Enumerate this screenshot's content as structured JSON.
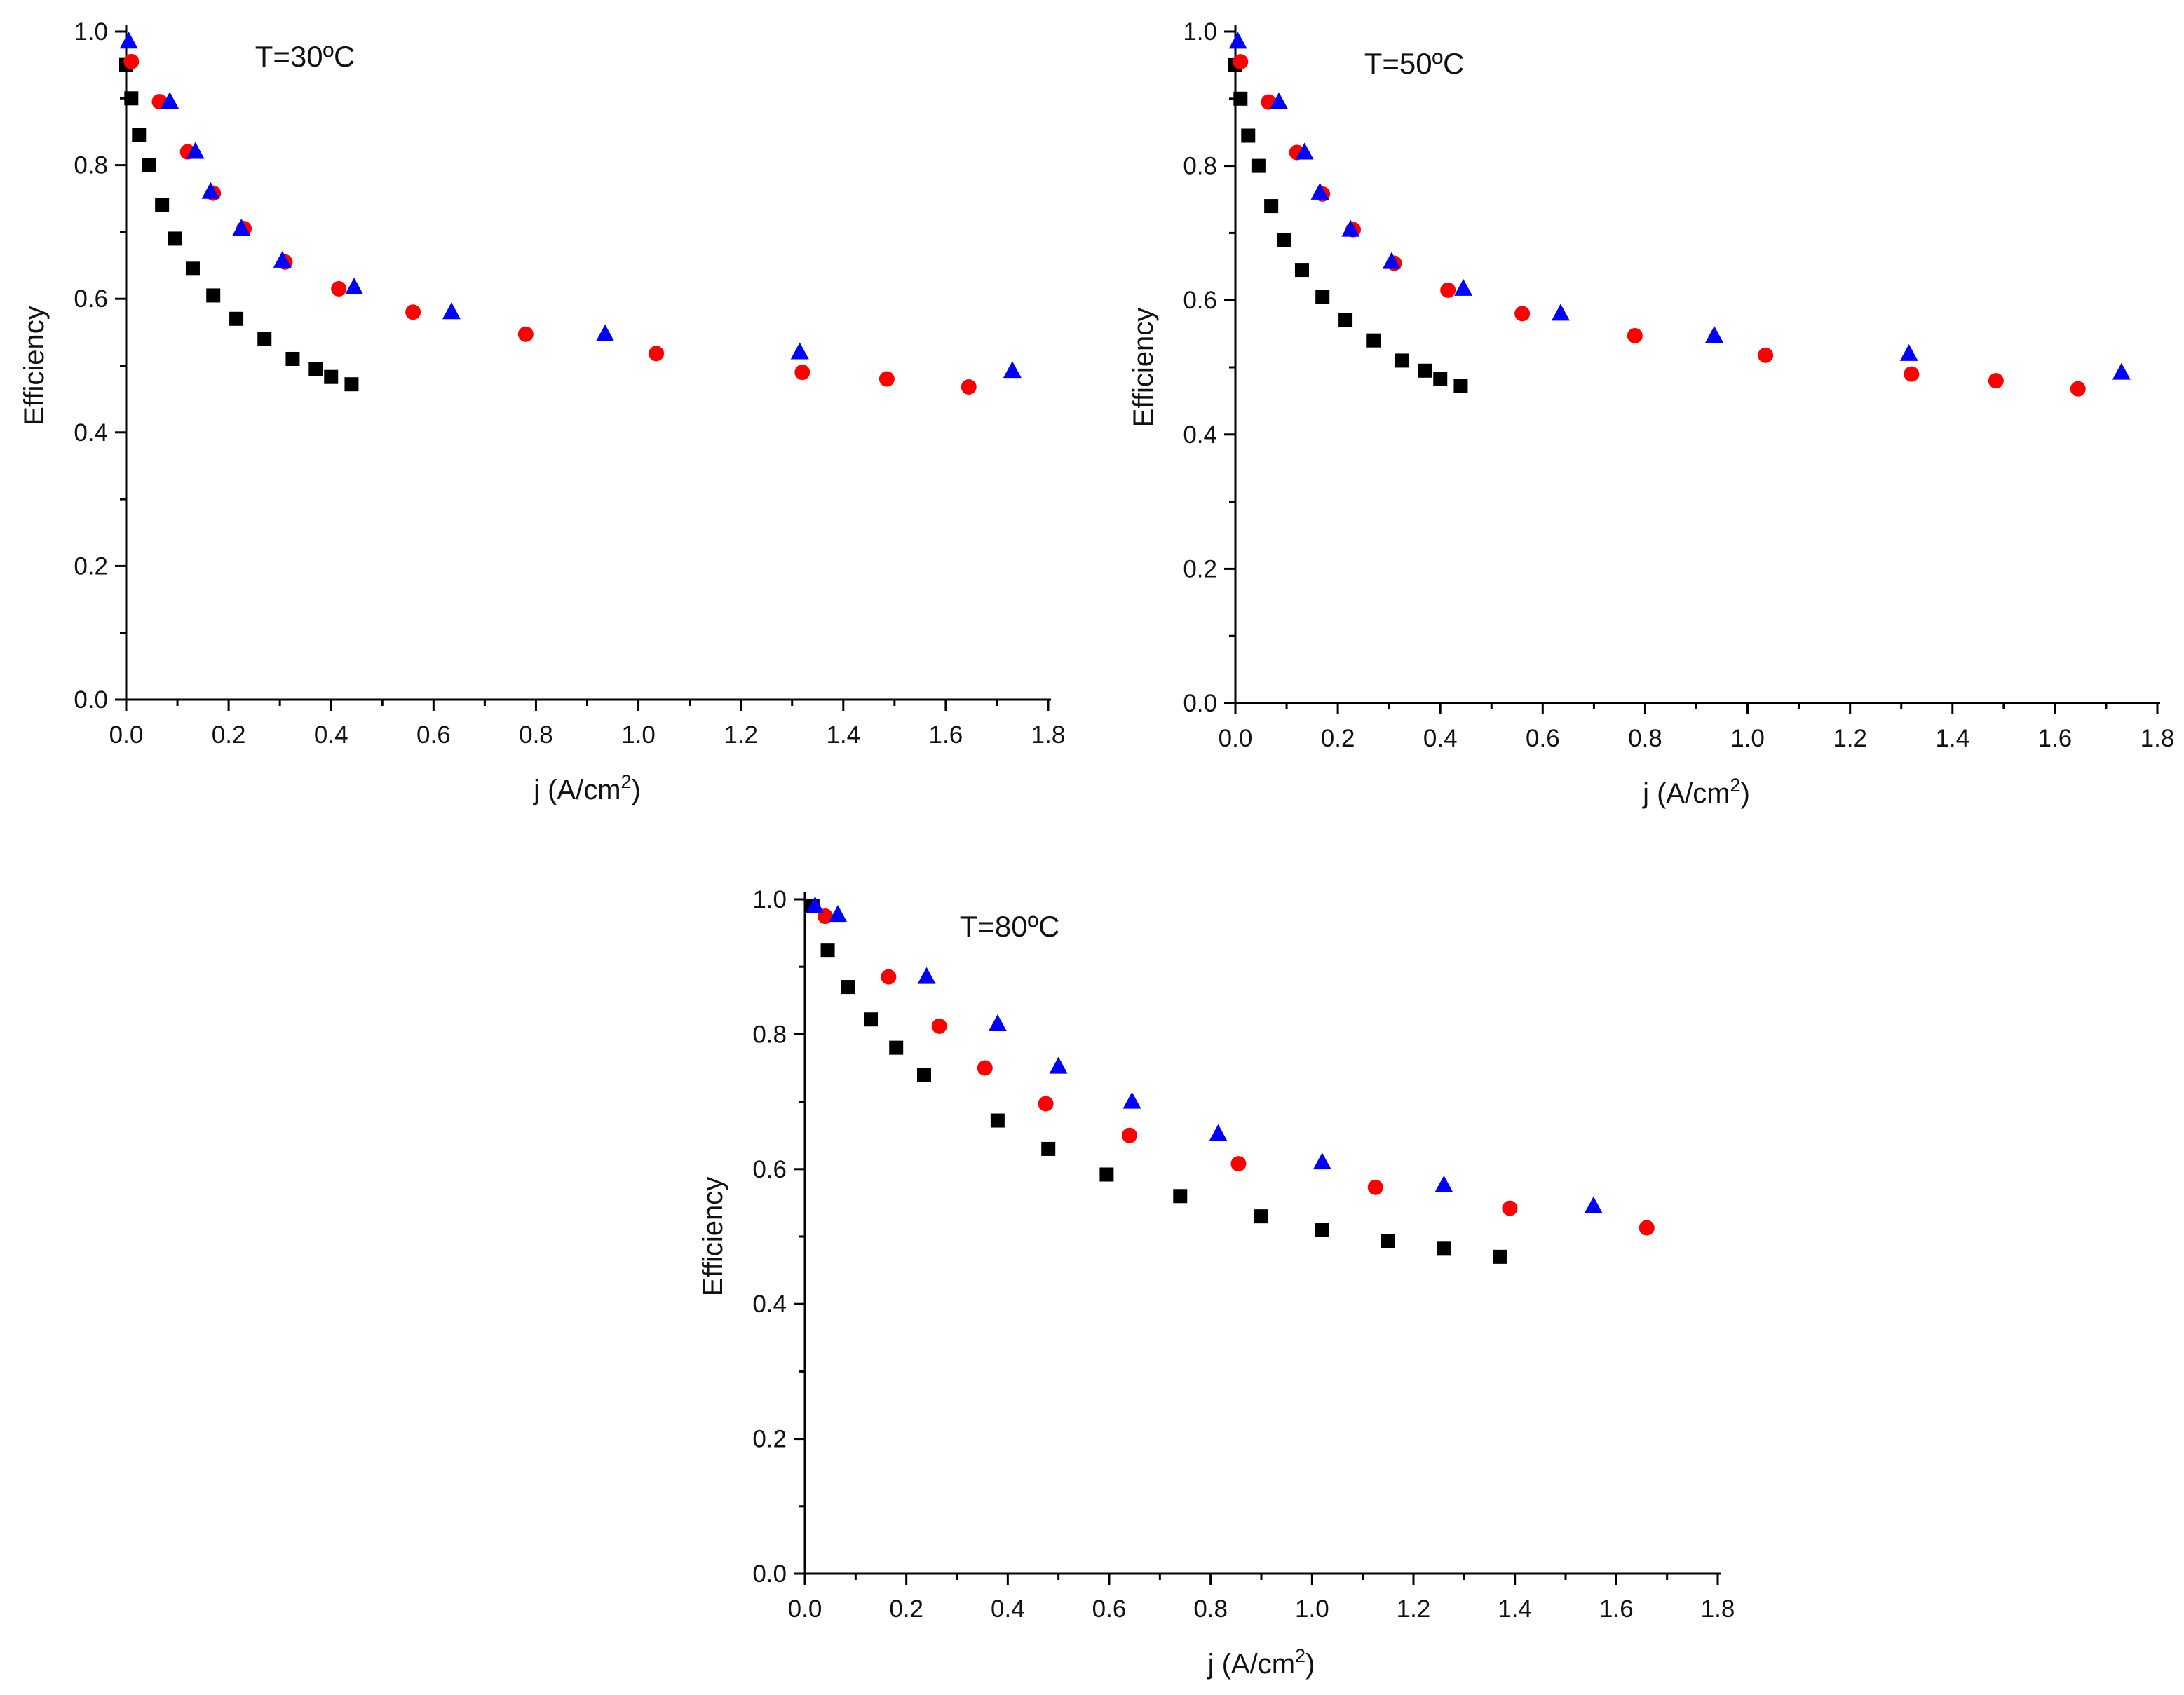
{
  "chart_data": [
    {
      "type": "scatter",
      "title": "T=30ºC",
      "xlabel": "j (A/cm",
      "xlabel_sup": "2",
      "xlabel_close": ")",
      "ylabel": "Efficiency",
      "xlim": [
        0,
        1.8
      ],
      "ylim": [
        0,
        1.0
      ],
      "xticks": [
        "0.0",
        "0.2",
        "0.4",
        "0.6",
        "0.8",
        "1.0",
        "1.2",
        "1.4",
        "1.6",
        "1.8"
      ],
      "yticks": [
        "0.0",
        "0.2",
        "0.4",
        "0.6",
        "0.8",
        "1.0"
      ],
      "series": [
        {
          "name": "square",
          "marker": "square",
          "color": "#000000",
          "points": [
            [
              0.0,
              0.95
            ],
            [
              0.01,
              0.9
            ],
            [
              0.025,
              0.845
            ],
            [
              0.045,
              0.8
            ],
            [
              0.07,
              0.74
            ],
            [
              0.095,
              0.69
            ],
            [
              0.13,
              0.645
            ],
            [
              0.17,
              0.605
            ],
            [
              0.215,
              0.57
            ],
            [
              0.27,
              0.54
            ],
            [
              0.325,
              0.51
            ],
            [
              0.37,
              0.495
            ],
            [
              0.4,
              0.483
            ],
            [
              0.44,
              0.472
            ]
          ]
        },
        {
          "name": "circle",
          "marker": "circle",
          "color": "#ff0000",
          "points": [
            [
              0.01,
              0.955
            ],
            [
              0.065,
              0.895
            ],
            [
              0.12,
              0.82
            ],
            [
              0.17,
              0.758
            ],
            [
              0.23,
              0.705
            ],
            [
              0.31,
              0.655
            ],
            [
              0.415,
              0.615
            ],
            [
              0.56,
              0.58
            ],
            [
              0.78,
              0.547
            ],
            [
              1.035,
              0.518
            ],
            [
              1.32,
              0.49
            ],
            [
              1.485,
              0.48
            ],
            [
              1.645,
              0.468
            ]
          ]
        },
        {
          "name": "triangle",
          "marker": "triangle",
          "color": "#0000ff",
          "points": [
            [
              0.005,
              0.985
            ],
            [
              0.085,
              0.895
            ],
            [
              0.135,
              0.82
            ],
            [
              0.165,
              0.76
            ],
            [
              0.225,
              0.705
            ],
            [
              0.305,
              0.657
            ],
            [
              0.445,
              0.617
            ],
            [
              0.635,
              0.58
            ],
            [
              0.935,
              0.547
            ],
            [
              1.315,
              0.52
            ],
            [
              1.73,
              0.492
            ]
          ]
        }
      ]
    },
    {
      "type": "scatter",
      "title": "T=50ºC",
      "xlabel": "j (A/cm",
      "xlabel_sup": "2",
      "xlabel_close": ")",
      "ylabel": "Efficiency",
      "xlim": [
        0,
        1.8
      ],
      "ylim": [
        0,
        1.0
      ],
      "xticks": [
        "0.0",
        "0.2",
        "0.4",
        "0.6",
        "0.8",
        "1.0",
        "1.2",
        "1.4",
        "1.6",
        "1.8"
      ],
      "yticks": [
        "0.0",
        "0.2",
        "0.4",
        "0.6",
        "0.8",
        "1.0"
      ],
      "series": [
        {
          "name": "square",
          "marker": "square",
          "color": "#000000",
          "points": [
            [
              0.0,
              0.95
            ],
            [
              0.01,
              0.9
            ],
            [
              0.025,
              0.845
            ],
            [
              0.045,
              0.8
            ],
            [
              0.07,
              0.74
            ],
            [
              0.095,
              0.69
            ],
            [
              0.13,
              0.645
            ],
            [
              0.17,
              0.605
            ],
            [
              0.215,
              0.57
            ],
            [
              0.27,
              0.54
            ],
            [
              0.325,
              0.51
            ],
            [
              0.37,
              0.495
            ],
            [
              0.4,
              0.483
            ],
            [
              0.44,
              0.472
            ]
          ]
        },
        {
          "name": "circle",
          "marker": "circle",
          "color": "#ff0000",
          "points": [
            [
              0.01,
              0.955
            ],
            [
              0.065,
              0.895
            ],
            [
              0.12,
              0.82
            ],
            [
              0.17,
              0.758
            ],
            [
              0.23,
              0.705
            ],
            [
              0.31,
              0.655
            ],
            [
              0.415,
              0.615
            ],
            [
              0.56,
              0.58
            ],
            [
              0.78,
              0.547
            ],
            [
              1.035,
              0.518
            ],
            [
              1.32,
              0.49
            ],
            [
              1.485,
              0.48
            ],
            [
              1.645,
              0.468
            ]
          ]
        },
        {
          "name": "triangle",
          "marker": "triangle",
          "color": "#0000ff",
          "points": [
            [
              0.005,
              0.985
            ],
            [
              0.085,
              0.895
            ],
            [
              0.135,
              0.82
            ],
            [
              0.165,
              0.76
            ],
            [
              0.225,
              0.705
            ],
            [
              0.305,
              0.657
            ],
            [
              0.445,
              0.617
            ],
            [
              0.635,
              0.58
            ],
            [
              0.935,
              0.547
            ],
            [
              1.315,
              0.52
            ],
            [
              1.73,
              0.492
            ]
          ]
        }
      ]
    },
    {
      "type": "scatter",
      "title": "T=80ºC",
      "xlabel": "j (A/cm",
      "xlabel_sup": "2",
      "xlabel_close": ")",
      "ylabel": "Efficiency",
      "xlim": [
        0,
        1.8
      ],
      "ylim": [
        0,
        1.0
      ],
      "xticks": [
        "0.0",
        "0.2",
        "0.4",
        "0.6",
        "0.8",
        "1.0",
        "1.2",
        "1.4",
        "1.6",
        "1.8"
      ],
      "yticks": [
        "0.0",
        "0.2",
        "0.4",
        "0.6",
        "0.8",
        "1.0"
      ],
      "series": [
        {
          "name": "square",
          "marker": "square",
          "color": "#000000",
          "points": [
            [
              0.015,
              0.99
            ],
            [
              0.045,
              0.925
            ],
            [
              0.085,
              0.87
            ],
            [
              0.13,
              0.822
            ],
            [
              0.18,
              0.78
            ],
            [
              0.235,
              0.74
            ],
            [
              0.38,
              0.672
            ],
            [
              0.48,
              0.63
            ],
            [
              0.595,
              0.592
            ],
            [
              0.74,
              0.56
            ],
            [
              0.9,
              0.53
            ],
            [
              1.02,
              0.51
            ],
            [
              1.15,
              0.493
            ],
            [
              1.26,
              0.482
            ],
            [
              1.37,
              0.47
            ]
          ]
        },
        {
          "name": "circle",
          "marker": "circle",
          "color": "#ff0000",
          "points": [
            [
              0.04,
              0.975
            ],
            [
              0.165,
              0.885
            ],
            [
              0.265,
              0.812
            ],
            [
              0.355,
              0.75
            ],
            [
              0.475,
              0.697
            ],
            [
              0.64,
              0.65
            ],
            [
              0.855,
              0.608
            ],
            [
              1.125,
              0.573
            ],
            [
              1.39,
              0.542
            ],
            [
              1.66,
              0.513
            ]
          ]
        },
        {
          "name": "triangle",
          "marker": "triangle",
          "color": "#0000ff",
          "points": [
            [
              0.02,
              0.99
            ],
            [
              0.065,
              0.977
            ],
            [
              0.24,
              0.885
            ],
            [
              0.38,
              0.815
            ],
            [
              0.5,
              0.752
            ],
            [
              0.645,
              0.7
            ],
            [
              0.815,
              0.652
            ],
            [
              1.02,
              0.61
            ],
            [
              1.26,
              0.576
            ],
            [
              1.555,
              0.545
            ]
          ]
        }
      ]
    }
  ]
}
